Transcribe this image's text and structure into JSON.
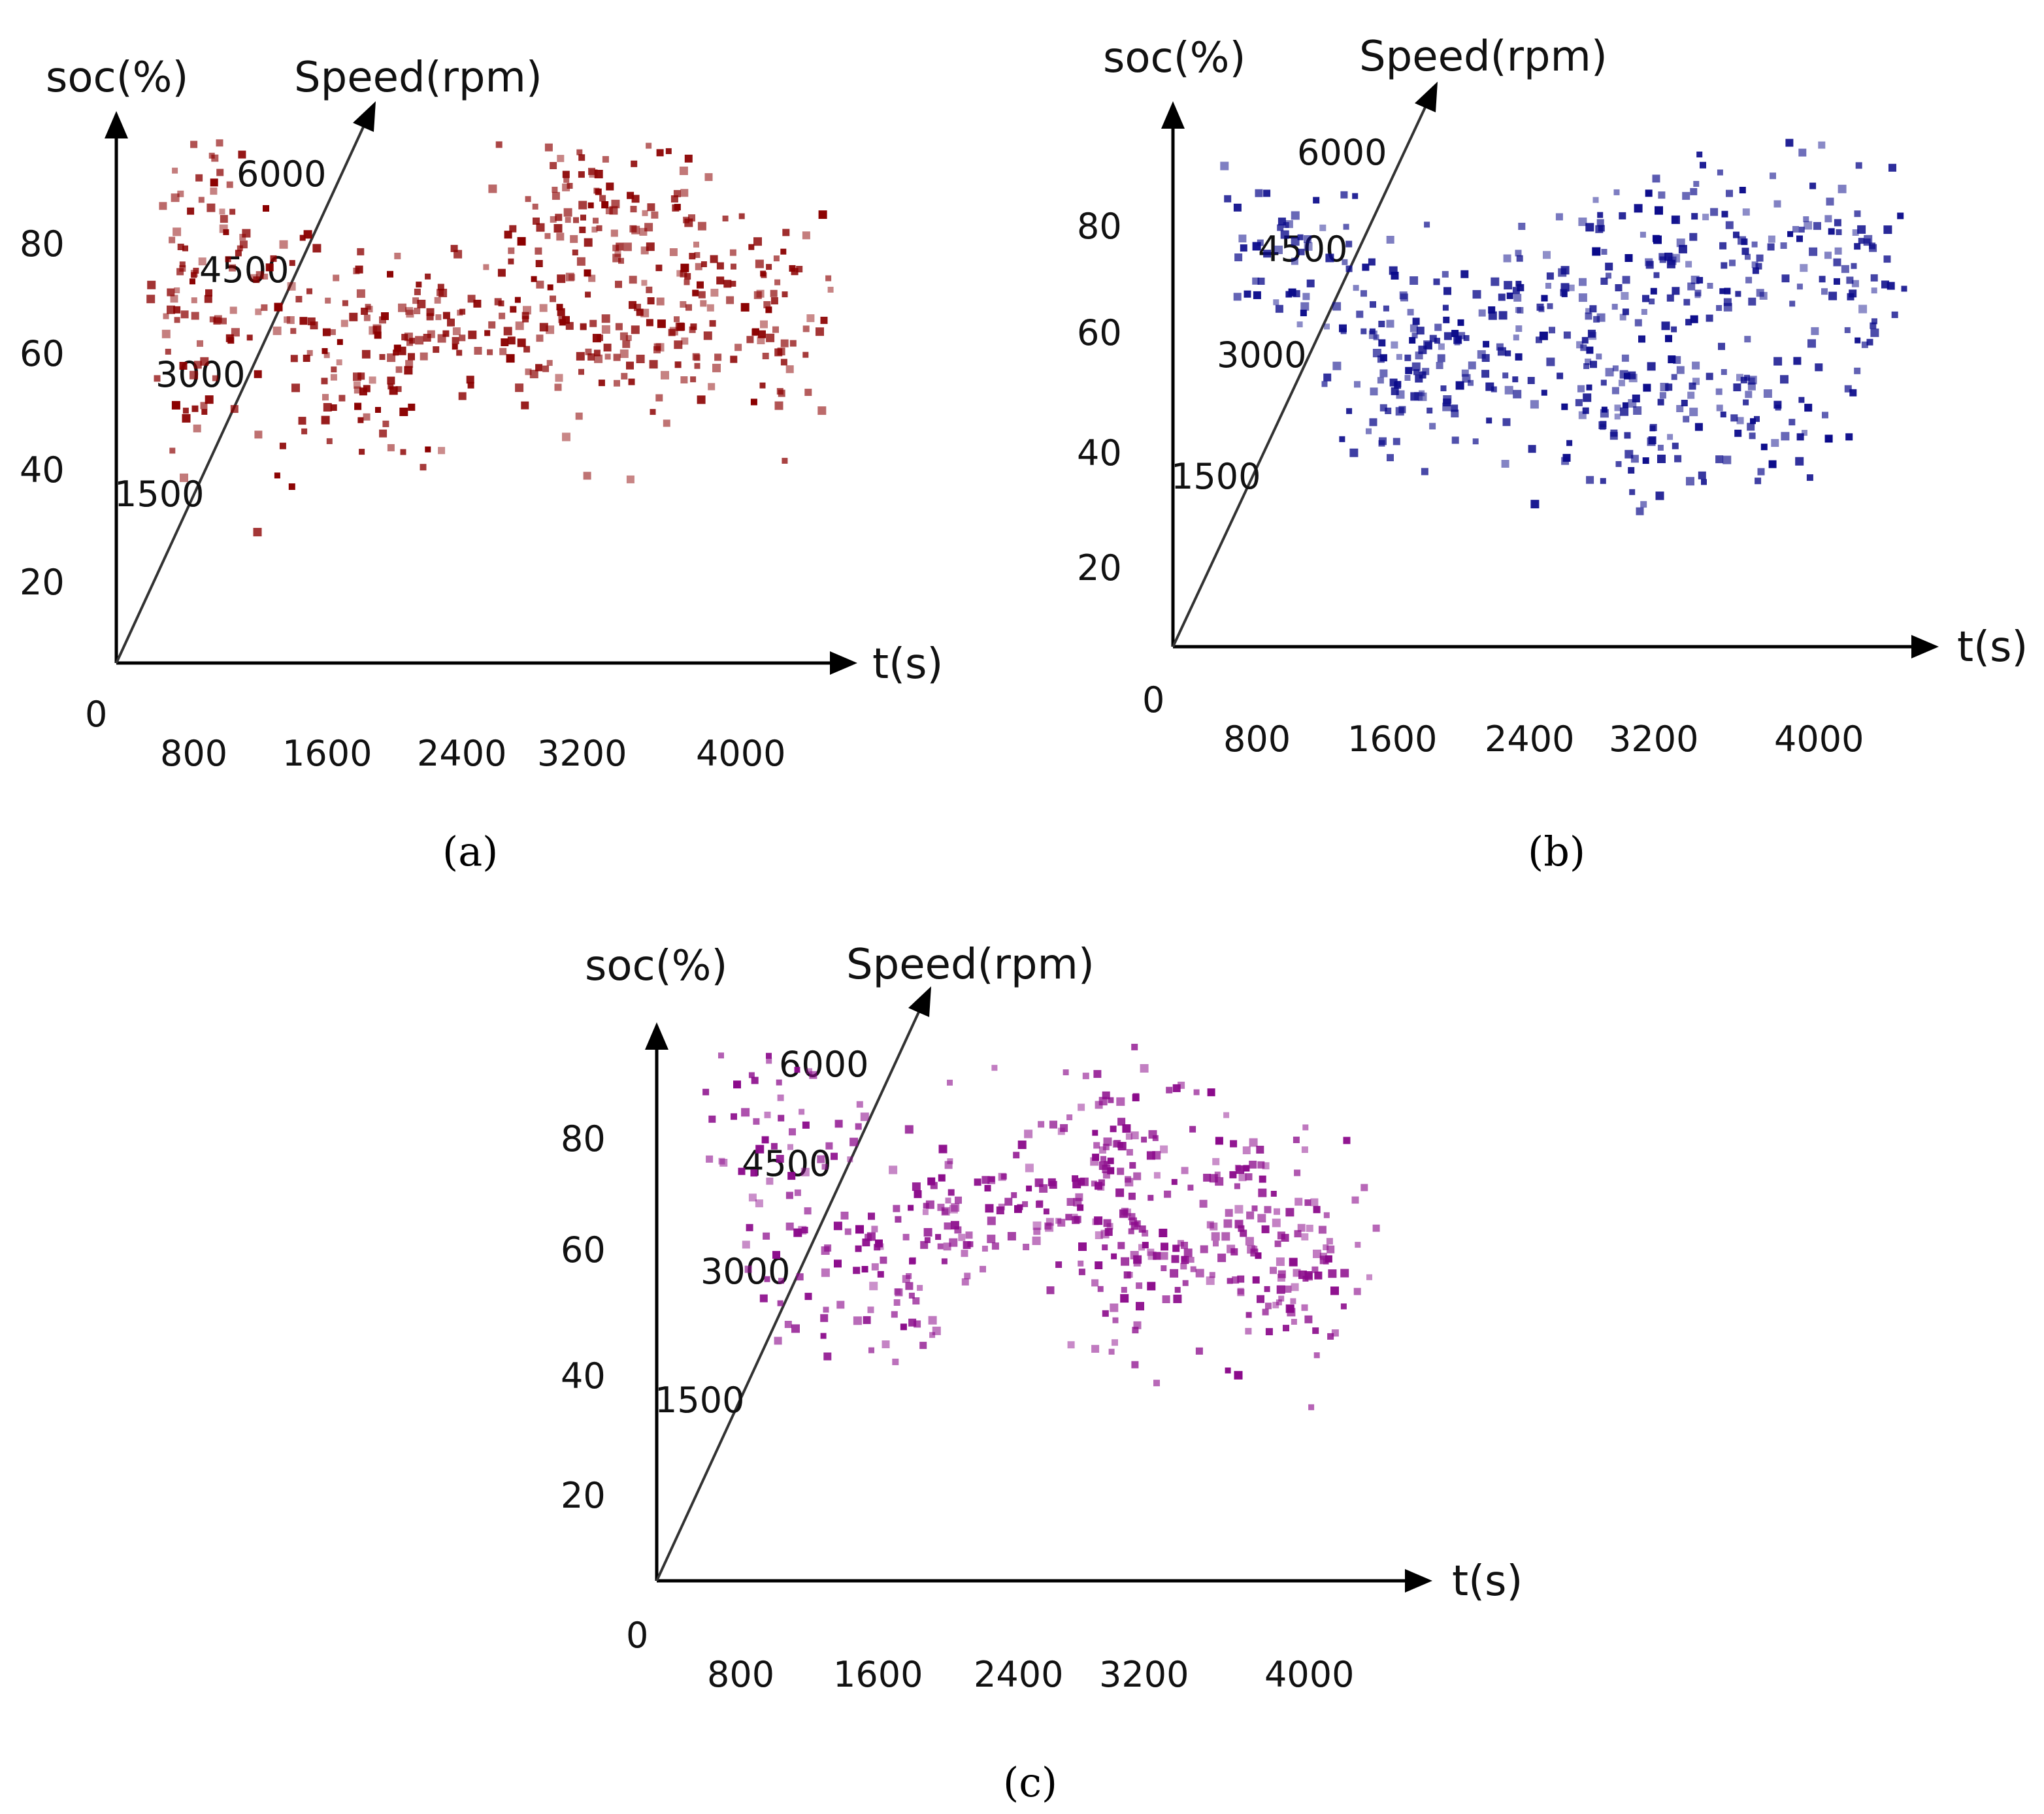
{
  "chart_data": [
    {
      "type": "scatter",
      "panel": "a",
      "caption": "(a)",
      "color": "#8b0000",
      "soc_axis_label": "soc(%)",
      "speed_axis_label": "Speed(rpm)",
      "time_axis_label": "t(s)",
      "origin_label": "0",
      "soc_ticks": [
        "20",
        "40",
        "60",
        "80"
      ],
      "speed_ticks": [
        "1500",
        "3000",
        "4500",
        "6000"
      ],
      "time_ticks": [
        "800",
        "1600",
        "2400",
        "3200",
        "4000"
      ],
      "clusters": [
        {
          "t": 300,
          "soc": 86,
          "n": 30,
          "st": 220,
          "ss": 10
        },
        {
          "t": 200,
          "soc": 64,
          "n": 45,
          "st": 260,
          "ss": 12
        },
        {
          "t": 600,
          "soc": 68,
          "n": 55,
          "st": 280,
          "ss": 10
        },
        {
          "t": 1300,
          "soc": 54,
          "n": 75,
          "st": 320,
          "ss": 10
        },
        {
          "t": 1900,
          "soc": 64,
          "n": 70,
          "st": 320,
          "ss": 7
        },
        {
          "t": 2700,
          "soc": 84,
          "n": 65,
          "st": 260,
          "ss": 6
        },
        {
          "t": 2600,
          "soc": 62,
          "n": 55,
          "st": 300,
          "ss": 9
        },
        {
          "t": 3250,
          "soc": 70,
          "n": 90,
          "st": 260,
          "ss": 12
        },
        {
          "t": 3900,
          "soc": 63,
          "n": 80,
          "st": 320,
          "ss": 10
        }
      ]
    },
    {
      "type": "scatter",
      "panel": "b",
      "caption": "(b)",
      "color": "#0a0a8a",
      "soc_axis_label": "soc(%)",
      "speed_axis_label": "Speed(rpm)",
      "time_axis_label": "t(s)",
      "origin_label": "0",
      "soc_ticks": [
        "20",
        "40",
        "60",
        "80"
      ],
      "speed_ticks": [
        "1500",
        "3000",
        "4500",
        "6000"
      ],
      "time_ticks": [
        "800",
        "1600",
        "2400",
        "3200",
        "4000"
      ],
      "clusters": [
        {
          "t": 350,
          "soc": 74,
          "n": 45,
          "st": 260,
          "ss": 8
        },
        {
          "t": 1000,
          "soc": 62,
          "n": 45,
          "st": 320,
          "ss": 9
        },
        {
          "t": 1300,
          "soc": 52,
          "n": 90,
          "st": 300,
          "ss": 8
        },
        {
          "t": 2100,
          "soc": 64,
          "n": 75,
          "st": 340,
          "ss": 8
        },
        {
          "t": 2800,
          "soc": 72,
          "n": 60,
          "st": 300,
          "ss": 8
        },
        {
          "t": 2600,
          "soc": 46,
          "n": 80,
          "st": 220,
          "ss": 9
        },
        {
          "t": 3500,
          "soc": 76,
          "n": 55,
          "st": 260,
          "ss": 8
        },
        {
          "t": 3400,
          "soc": 44,
          "n": 55,
          "st": 260,
          "ss": 7
        },
        {
          "t": 4050,
          "soc": 66,
          "n": 45,
          "st": 200,
          "ss": 9
        }
      ]
    },
    {
      "type": "scatter",
      "panel": "c",
      "caption": "(c)",
      "color": "#8b0a8b",
      "soc_axis_label": "soc(%)",
      "speed_axis_label": "Speed(rpm)",
      "time_axis_label": "t(s)",
      "origin_label": "0",
      "soc_ticks": [
        "20",
        "40",
        "60",
        "80"
      ],
      "speed_ticks": [
        "1500",
        "3000",
        "4500",
        "6000"
      ],
      "time_ticks": [
        "800",
        "1600",
        "2400",
        "3200",
        "4000"
      ],
      "clusters": [
        {
          "t": 350,
          "soc": 78,
          "n": 55,
          "st": 240,
          "ss": 12
        },
        {
          "t": 800,
          "soc": 58,
          "n": 45,
          "st": 280,
          "ss": 9
        },
        {
          "t": 1400,
          "soc": 60,
          "n": 75,
          "st": 300,
          "ss": 10
        },
        {
          "t": 2150,
          "soc": 68,
          "n": 55,
          "st": 300,
          "ss": 7
        },
        {
          "t": 2600,
          "soc": 78,
          "n": 60,
          "st": 240,
          "ss": 8
        },
        {
          "t": 2700,
          "soc": 58,
          "n": 55,
          "st": 260,
          "ss": 10
        },
        {
          "t": 3300,
          "soc": 66,
          "n": 90,
          "st": 300,
          "ss": 11
        },
        {
          "t": 3800,
          "soc": 56,
          "n": 75,
          "st": 300,
          "ss": 10
        }
      ]
    }
  ]
}
